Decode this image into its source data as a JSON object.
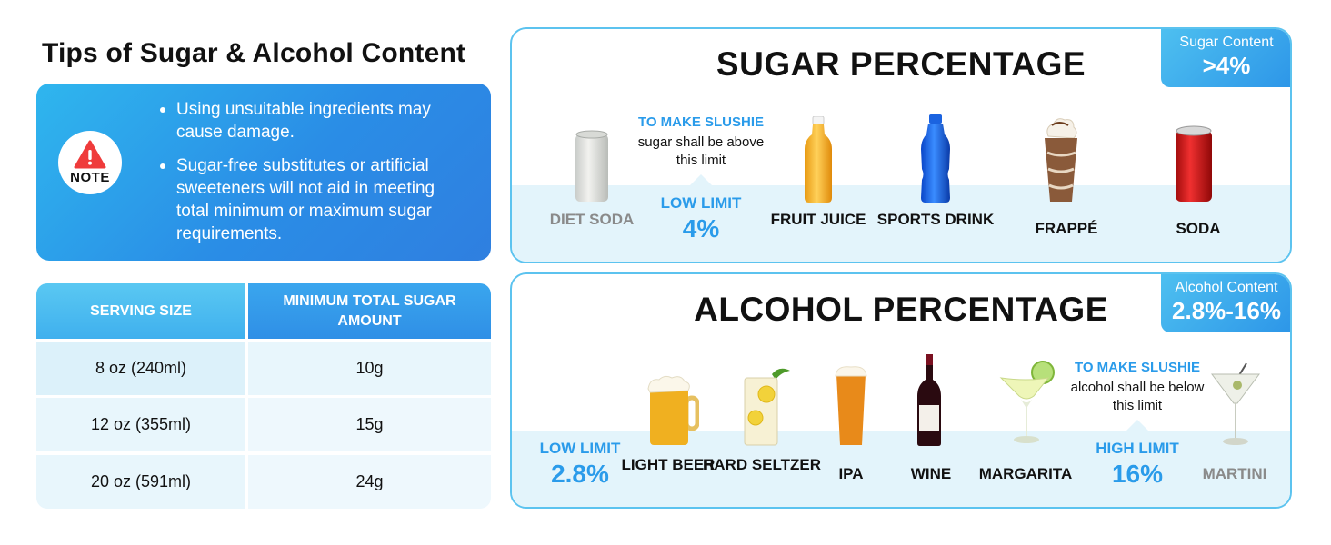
{
  "tips": {
    "title": "Tips of Sugar & Alcohol Content",
    "note_label": "NOTE",
    "bullets": [
      "Using unsuitable ingredients may cause damage.",
      "Sugar-free substitutes or artificial sweeteners will not aid in meeting total minimum or maximum sugar requirements."
    ]
  },
  "sugar_table": {
    "headers": [
      "SERVING SIZE",
      "MINIMUM TOTAL SUGAR AMOUNT"
    ],
    "rows": [
      [
        "8 oz (240ml)",
        "10g"
      ],
      [
        "12 oz (355ml)",
        "15g"
      ],
      [
        "20 oz (591ml)",
        "24g"
      ]
    ]
  },
  "sugar_panel": {
    "title": "SUGAR PERCENTAGE",
    "tag_label": "Sugar Content",
    "tag_value": ">4%",
    "note_head": "TO MAKE SLUSHIE",
    "note_body": "sugar shall be above this limit",
    "limit_label": "LOW LIMIT",
    "limit_value": "4%",
    "items": [
      {
        "label": "DIET SODA",
        "icon": "can-icon",
        "muted": true
      },
      {
        "label": "FRUIT JUICE",
        "icon": "juice-bottle-icon",
        "muted": false
      },
      {
        "label": "SPORTS DRINK",
        "icon": "sports-drink-icon",
        "muted": false
      },
      {
        "label": "FRAPPÉ",
        "icon": "frappe-cup-icon",
        "muted": false
      },
      {
        "label": "SODA",
        "icon": "soda-can-icon",
        "muted": false
      }
    ]
  },
  "alcohol_panel": {
    "title": "ALCOHOL PERCENTAGE",
    "tag_label": "Alcohol Content",
    "tag_value": "2.8%-16%",
    "low_label": "LOW LIMIT",
    "low_value": "2.8%",
    "high_label": "HIGH LIMIT",
    "high_value": "16%",
    "note_head": "TO MAKE SLUSHIE",
    "note_body": "alcohol shall be below this limit",
    "items": [
      {
        "label": "LIGHT BEER",
        "icon": "beer-mug-icon",
        "muted": false
      },
      {
        "label": "HARD SELTZER",
        "icon": "seltzer-glass-icon",
        "muted": false
      },
      {
        "label": "IPA",
        "icon": "pint-glass-icon",
        "muted": false
      },
      {
        "label": "WINE",
        "icon": "wine-bottle-icon",
        "muted": false
      },
      {
        "label": "MARGARITA",
        "icon": "margarita-glass-icon",
        "muted": false
      },
      {
        "label": "MARTINI",
        "icon": "martini-glass-icon",
        "muted": true
      }
    ]
  },
  "colors": {
    "accent": "#2a9bea",
    "panel_border": "#5cc3ef",
    "band": "#e3f4fb",
    "muted_text": "#8a8a8a"
  }
}
